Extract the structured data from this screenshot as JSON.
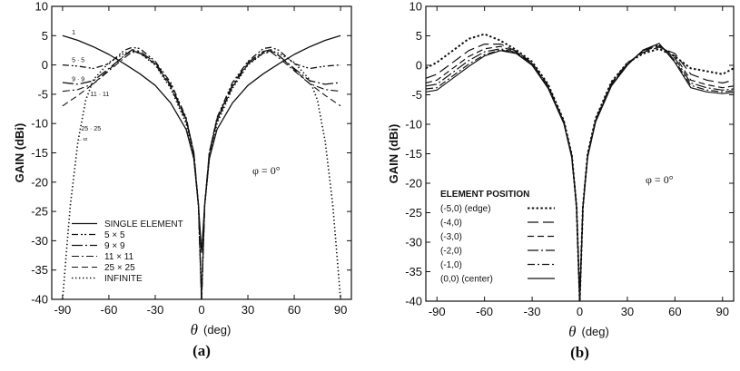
{
  "chart_data": [
    {
      "type": "line",
      "panel_label": "(a)",
      "xlabel_symbol": "θ",
      "xlabel_unit": "(deg)",
      "ylabel": "GAIN (dBi)",
      "xlim": [
        -97,
        97
      ],
      "ylim": [
        -40,
        10
      ],
      "x_ticks": [
        -90,
        -60,
        -30,
        0,
        30,
        60,
        90
      ],
      "y_ticks": [
        10,
        5,
        0,
        -5,
        -10,
        -15,
        -20,
        -25,
        -30,
        -35,
        -40
      ],
      "annotation_phi": "φ = 0°",
      "legend_title": "",
      "series": [
        {
          "name": "SINGLE ELEMENT",
          "style": "solid",
          "width": 1.3,
          "x": [
            -90,
            -80,
            -70,
            -60,
            -50,
            -40,
            -30,
            -20,
            -10,
            -5,
            -2,
            0,
            2,
            5,
            10,
            20,
            30,
            40,
            50,
            60,
            70,
            80,
            90
          ],
          "y": [
            5,
            4.2,
            3.1,
            1.8,
            0.2,
            -1.5,
            -3.5,
            -6.5,
            -11,
            -16,
            -24,
            -32,
            -24,
            -16,
            -11,
            -6.5,
            -3.5,
            -1.5,
            0.2,
            1.8,
            3.1,
            4.2,
            5
          ]
        },
        {
          "name": "5 × 5",
          "style": "dash-dot-dot",
          "width": 1.3,
          "x": [
            -90,
            -80,
            -70,
            -60,
            -50,
            -45,
            -40,
            -30,
            -20,
            -10,
            -5,
            -2,
            0,
            2,
            5,
            10,
            20,
            30,
            40,
            45,
            50,
            60,
            70,
            80,
            90
          ],
          "y": [
            0,
            -0.2,
            -0.6,
            0.2,
            2.5,
            3,
            2.8,
            0.6,
            -3,
            -9,
            -15,
            -24,
            -40,
            -24,
            -15,
            -9,
            -3,
            0.6,
            2.8,
            3,
            2.5,
            0.2,
            -0.6,
            -0.2,
            0
          ]
        },
        {
          "name": "9 × 9",
          "style": "longdash-dot",
          "width": 1.3,
          "x": [
            -90,
            -80,
            -70,
            -60,
            -50,
            -45,
            -40,
            -30,
            -20,
            -10,
            -5,
            -2,
            0,
            2,
            5,
            10,
            20,
            30,
            40,
            45,
            50,
            60,
            70,
            80,
            90
          ],
          "y": [
            -3,
            -3.3,
            -2.7,
            -0.6,
            1.6,
            2.6,
            2.3,
            0.4,
            -3.4,
            -9.2,
            -15,
            -24,
            -40,
            -24,
            -15,
            -9.2,
            -3.4,
            0.4,
            2.3,
            2.6,
            1.6,
            -0.6,
            -2.7,
            -3.3,
            -3
          ]
        },
        {
          "name": "11 × 11",
          "style": "dash-dot",
          "width": 1.1,
          "x": [
            -90,
            -80,
            -70,
            -60,
            -50,
            -45,
            -40,
            -30,
            -20,
            -10,
            -5,
            -2,
            0,
            2,
            5,
            10,
            20,
            30,
            40,
            45,
            50,
            60,
            70,
            80,
            90
          ],
          "y": [
            -4.5,
            -4.2,
            -3.2,
            -1,
            1.2,
            2.2,
            2,
            0.2,
            -3.6,
            -9.4,
            -15.2,
            -24,
            -40,
            -24,
            -15.2,
            -9.4,
            -3.6,
            0.2,
            2,
            2.2,
            1.2,
            -1,
            -3.2,
            -4.2,
            -4.5
          ]
        },
        {
          "name": "25 × 25",
          "style": "dashed",
          "width": 1.1,
          "x": [
            -90,
            -80,
            -70,
            -60,
            -50,
            -45,
            -40,
            -30,
            -20,
            -10,
            -5,
            -2,
            0,
            2,
            5,
            10,
            20,
            30,
            40,
            45,
            50,
            60,
            70,
            80,
            90
          ],
          "y": [
            -7,
            -5.2,
            -3.2,
            -0.8,
            1.6,
            2.4,
            2.1,
            0.1,
            -3.8,
            -9.6,
            -15.4,
            -24,
            -40,
            -24,
            -15.4,
            -9.6,
            -3.8,
            0.1,
            2.1,
            2.4,
            1.6,
            -0.8,
            -3.2,
            -5.2,
            -7
          ]
        },
        {
          "name": "INFINITE",
          "style": "dotted",
          "width": 1.6,
          "x": [
            -90,
            -85,
            -80,
            -75,
            -70,
            -60,
            -50,
            -45,
            -40,
            -30,
            -20,
            -10,
            -5,
            -2,
            0,
            2,
            5,
            10,
            20,
            30,
            40,
            45,
            50,
            60,
            70,
            75,
            80,
            85,
            90
          ],
          "y": [
            -40,
            -24,
            -13,
            -6,
            -2.5,
            0.4,
            2,
            2.4,
            2,
            0,
            -4,
            -10,
            -16,
            -24,
            -40,
            -24,
            -16,
            -10,
            -4,
            0,
            2,
            2.4,
            2,
            0.4,
            -2.5,
            -6,
            -13,
            -24,
            -40
          ]
        }
      ],
      "curve_tags": [
        {
          "text": "1",
          "x": -84,
          "y": 5.2
        },
        {
          "text": "5 · 5",
          "x": -84,
          "y": 0.5
        },
        {
          "text": "9 · 9",
          "x": -84,
          "y": -2.8
        },
        {
          "text": "11 · 11",
          "x": -72,
          "y": -5.3
        },
        {
          "text": "25 · 25",
          "x": -78,
          "y": -11.2
        },
        {
          "text": "←∞",
          "x": -81,
          "y": -13
        }
      ]
    },
    {
      "type": "line",
      "panel_label": "(b)",
      "xlabel_symbol": "θ",
      "xlabel_unit": "(deg)",
      "ylabel": "GAIN (dBi)",
      "xlim": [
        -97,
        97
      ],
      "ylim": [
        -40,
        10
      ],
      "x_ticks": [
        -90,
        -60,
        -30,
        0,
        30,
        60,
        90
      ],
      "y_ticks": [
        10,
        5,
        0,
        -5,
        -10,
        -15,
        -20,
        -25,
        -30,
        -35,
        -40
      ],
      "annotation_phi": "φ = 0°",
      "legend_title": "ELEMENT POSITION",
      "series": [
        {
          "name": "(-5,0)  (edge)",
          "style": "dotted-bold",
          "width": 2,
          "x": [
            -97,
            -90,
            -80,
            -70,
            -60,
            -50,
            -40,
            -30,
            -20,
            -10,
            -5,
            -2,
            0,
            2,
            5,
            10,
            20,
            30,
            40,
            50,
            60,
            70,
            80,
            90,
            97
          ],
          "y": [
            -0.5,
            0.5,
            2.5,
            4.5,
            5.3,
            4.2,
            2.6,
            0.6,
            -3.2,
            -9.4,
            -15.2,
            -24,
            -40,
            -24,
            -15,
            -9,
            -2.8,
            0.4,
            2,
            2.8,
            1.5,
            -0.5,
            -1,
            -1.5,
            -0.5
          ]
        },
        {
          "name": "(-4,0)",
          "style": "longdash",
          "width": 1.2,
          "x": [
            -97,
            -90,
            -80,
            -70,
            -60,
            -50,
            -40,
            -30,
            -20,
            -10,
            -5,
            -2,
            0,
            2,
            5,
            10,
            20,
            30,
            40,
            50,
            60,
            70,
            80,
            90,
            97
          ],
          "y": [
            -2.2,
            -1.5,
            0.5,
            2.5,
            3.6,
            3.6,
            2.4,
            0.4,
            -3.4,
            -9.5,
            -15.3,
            -24,
            -40,
            -24,
            -15.2,
            -9.2,
            -3,
            0.4,
            2.2,
            3.1,
            2,
            -1.5,
            -2.5,
            -3,
            -2.5
          ]
        },
        {
          "name": "(-3,0)",
          "style": "dashed",
          "width": 1.2,
          "x": [
            -97,
            -90,
            -80,
            -70,
            -60,
            -50,
            -40,
            -30,
            -20,
            -10,
            -5,
            -2,
            0,
            2,
            5,
            10,
            20,
            30,
            40,
            50,
            60,
            70,
            80,
            90,
            97
          ],
          "y": [
            -3,
            -2.5,
            -0.5,
            1.5,
            2.8,
            3.2,
            2.3,
            0.3,
            -3.6,
            -9.6,
            -15.4,
            -24,
            -40,
            -24,
            -15.3,
            -9.3,
            -3.2,
            0.3,
            2.4,
            3.3,
            1.6,
            -2.5,
            -3.3,
            -3.8,
            -3.5
          ]
        },
        {
          "name": "(-2,0)",
          "style": "longdash-dot",
          "width": 1.2,
          "x": [
            -97,
            -90,
            -80,
            -70,
            -60,
            -50,
            -40,
            -30,
            -20,
            -10,
            -5,
            -2,
            0,
            2,
            5,
            10,
            20,
            30,
            40,
            50,
            60,
            70,
            80,
            90,
            97
          ],
          "y": [
            -3.5,
            -3.2,
            -1.2,
            0.8,
            2.3,
            2.8,
            2.2,
            0.2,
            -3.7,
            -9.7,
            -15.5,
            -24,
            -40,
            -24,
            -15.4,
            -9.4,
            -3.3,
            0.2,
            2.5,
            3.5,
            1.2,
            -3,
            -3.8,
            -4.2,
            -4
          ]
        },
        {
          "name": "(-1,0)",
          "style": "dash-dot",
          "width": 1.2,
          "x": [
            -97,
            -90,
            -80,
            -70,
            -60,
            -50,
            -40,
            -30,
            -20,
            -10,
            -5,
            -2,
            0,
            2,
            5,
            10,
            20,
            30,
            40,
            50,
            60,
            70,
            80,
            90,
            97
          ],
          "y": [
            -4,
            -3.8,
            -1.8,
            0.2,
            1.8,
            2.6,
            2.1,
            0.1,
            -3.8,
            -9.8,
            -15.6,
            -24,
            -40,
            -24,
            -15.5,
            -9.5,
            -3.4,
            0.1,
            2.6,
            3.6,
            0.8,
            -3.4,
            -4.2,
            -4.5,
            -4.3
          ]
        },
        {
          "name": "(0,0)  (center)",
          "style": "solid",
          "width": 1.2,
          "x": [
            -97,
            -90,
            -80,
            -70,
            -60,
            -50,
            -40,
            -30,
            -20,
            -10,
            -5,
            -2,
            0,
            2,
            5,
            10,
            20,
            30,
            40,
            50,
            60,
            70,
            80,
            90,
            97
          ],
          "y": [
            -4.5,
            -4.2,
            -2.2,
            -0.2,
            1.6,
            2.5,
            2,
            0,
            -3.9,
            -9.9,
            -15.7,
            -24,
            -40,
            -24,
            -15.6,
            -9.6,
            -3.5,
            0,
            2.6,
            3.7,
            0.5,
            -3.8,
            -4.5,
            -4.8,
            -4.6
          ]
        }
      ]
    }
  ]
}
